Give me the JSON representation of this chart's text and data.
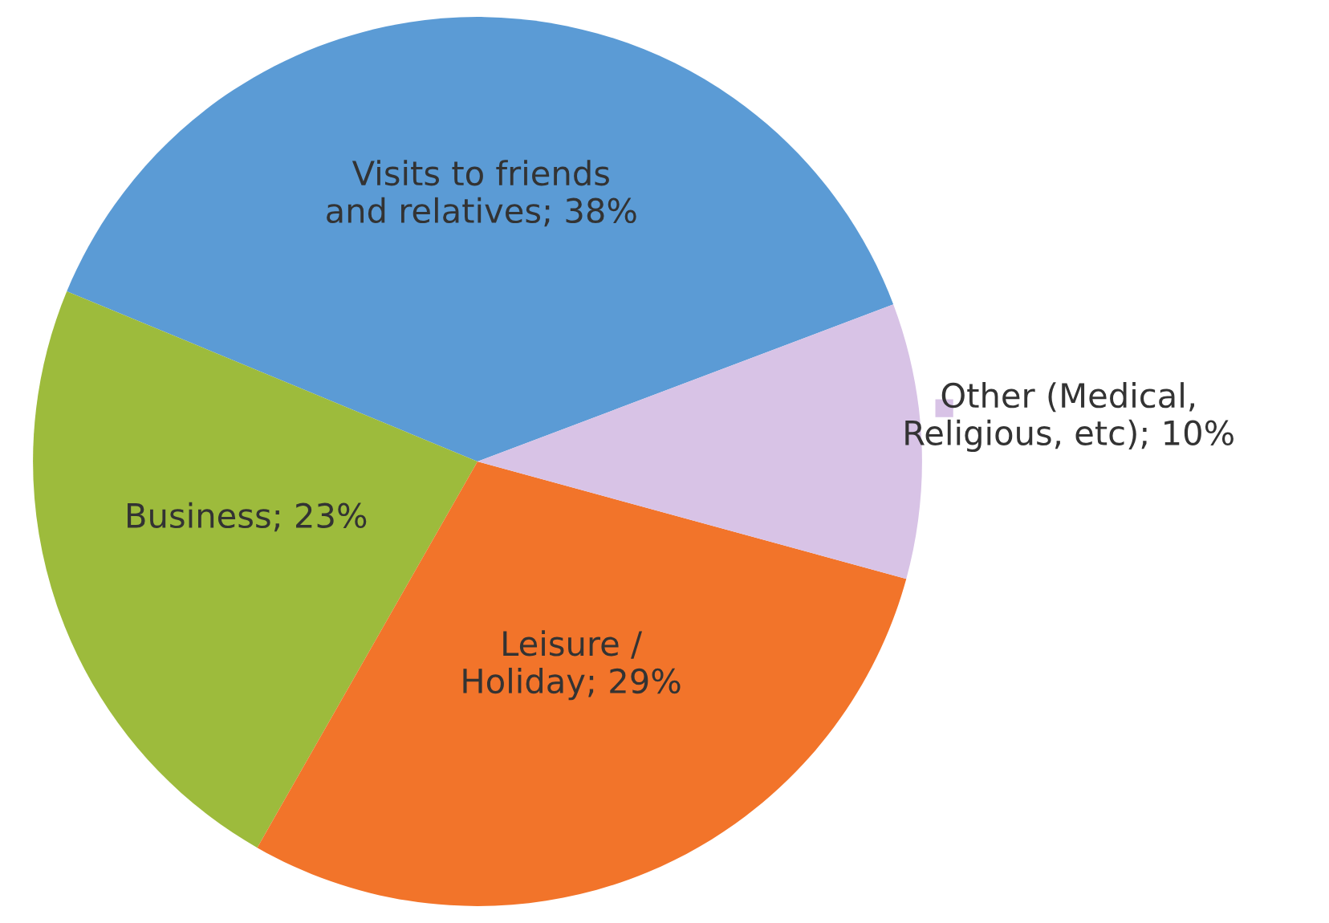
{
  "chart_data": {
    "type": "pie",
    "categories": [
      "Visits to friends and relatives",
      "Business",
      "Leisure / Holiday",
      "Other (Medical, Religious, etc)"
    ],
    "values": [
      38,
      23,
      29,
      10
    ],
    "value_labels": [
      "38%",
      "23%",
      "29%",
      "10%"
    ],
    "colors": [
      "#5b9bd5",
      "#9dbb3c",
      "#f2742a",
      "#d8c3e6"
    ]
  }
}
